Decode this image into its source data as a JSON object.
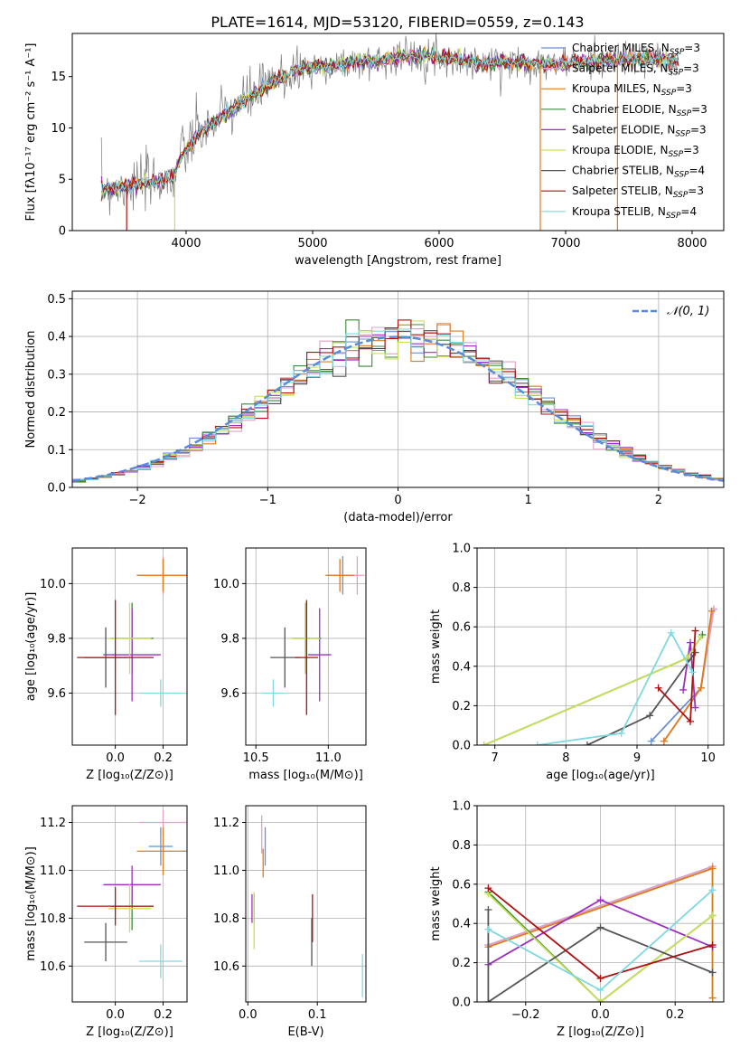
{
  "figure": {
    "title": "PLATE=1614, MJD=53120, FIBERID=0559, z=0.143"
  },
  "colors": {
    "Chabrier MILES": "#6b8fd4",
    "Salpeter MILES": "#e0a0c8",
    "Kroupa MILES": "#e07b1a",
    "Chabrier ELODIE": "#3a8a3a",
    "Salpeter ELODIE": "#9b30c0",
    "Kroupa ELODIE": "#c8e05a",
    "Chabrier STELIB": "#555555",
    "Salpeter STELIB": "#b01010",
    "Kroupa STELIB": "#80d8e0",
    "data": "#7a7a7a",
    "gaussian": "#5a8ad8"
  },
  "chart_data": [
    {
      "id": "spectrum",
      "type": "line",
      "xlabel": "wavelength [Angstrom, rest frame]",
      "ylabel": "Flux [fλ10⁻¹⁷ erg cm⁻² s⁻¹ A⁻¹]",
      "xlim": [
        3100,
        8250
      ],
      "ylim": [
        0,
        19.2
      ],
      "xticks": [
        4000,
        5000,
        6000,
        7000,
        8000
      ],
      "yticks": [
        0,
        5,
        10,
        15
      ],
      "grid": false,
      "legend_position": "top-right",
      "legend": [
        "Chabrier MILES, NSSP=3",
        "Salpeter MILES, NSSP=3",
        "Kroupa MILES, NSSP=3",
        "Chabrier ELODIE, NSSP=3",
        "Salpeter ELODIE, NSSP=3",
        "Kroupa ELODIE, NSSP=3",
        "Chabrier STELIB, NSSP=4",
        "Salpeter STELIB, NSSP=3",
        "Kroupa STELIB, NSSP=4"
      ],
      "continuum": {
        "x": [
          3330,
          3500,
          3700,
          3900,
          3950,
          4100,
          4300,
          4500,
          4700,
          4900,
          5100,
          5300,
          5500,
          5700,
          5900,
          6100,
          6300,
          6500,
          6700,
          6900,
          7100,
          7300,
          7500,
          7700,
          7900
        ],
        "y": [
          4.0,
          4.3,
          4.6,
          5.2,
          7.0,
          9.5,
          11.2,
          13.0,
          14.5,
          15.8,
          16.0,
          16.3,
          16.5,
          17.0,
          17.0,
          16.8,
          16.3,
          16.5,
          16.3,
          16.2,
          16.4,
          16.6,
          16.7,
          16.7,
          16.5
        ]
      },
      "zero_drops": [
        3530,
        3910,
        6800,
        7410
      ]
    },
    {
      "id": "residuals",
      "type": "line",
      "xlabel": "(data-model)/error",
      "ylabel": "Normed distribution",
      "xlim": [
        -2.5,
        2.5
      ],
      "ylim": [
        0,
        0.52
      ],
      "xticks": [
        -2,
        -1,
        0,
        1,
        2
      ],
      "yticks": [
        0.0,
        0.1,
        0.2,
        0.3,
        0.4,
        0.5
      ],
      "grid": true,
      "legend_position": "top-right",
      "legend_label": "𝒩(0, 1)",
      "bin_width": 0.1
    },
    {
      "id": "age-vs-Z",
      "type": "scatter",
      "xlabel": "Z [log₁₀(Z/Z⊙)]",
      "ylabel": "age  [log₁₀(age/yr)]",
      "xlim": [
        -0.18,
        0.3
      ],
      "ylim": [
        9.41,
        10.13
      ],
      "xticks": [
        0.0,
        0.2
      ],
      "yticks": [
        9.6,
        9.8,
        10.0
      ],
      "grid": true,
      "points": [
        {
          "model": "Chabrier MILES",
          "x": 0.2,
          "xerr": 0.11,
          "y": 10.03,
          "yerr": 0.06
        },
        {
          "model": "Salpeter MILES",
          "x": 0.2,
          "xerr": 0.1,
          "y": 10.03,
          "yerr": 0.07
        },
        {
          "model": "Kroupa MILES",
          "x": 0.2,
          "xerr": 0.11,
          "y": 10.03,
          "yerr": 0.06
        },
        {
          "model": "Chabrier ELODIE",
          "x": 0.07,
          "xerr": 0.09,
          "y": 9.8,
          "yerr": 0.13
        },
        {
          "model": "Salpeter ELODIE",
          "x": 0.07,
          "xerr": 0.12,
          "y": 9.74,
          "yerr": 0.17
        },
        {
          "model": "Kroupa ELODIE",
          "x": 0.06,
          "xerr": 0.09,
          "y": 9.8,
          "yerr": 0.13
        },
        {
          "model": "Chabrier STELIB",
          "x": -0.04,
          "xerr": 0.09,
          "y": 9.73,
          "yerr": 0.11
        },
        {
          "model": "Salpeter STELIB",
          "x": 0.0,
          "xerr": 0.16,
          "y": 9.73,
          "yerr": 0.21
        },
        {
          "model": "Kroupa STELIB",
          "x": 0.19,
          "xerr": 0.09,
          "y": 9.6,
          "yerr": 0.05
        }
      ]
    },
    {
      "id": "age-vs-mass",
      "type": "scatter",
      "xlabel": "mass [log₁₀(M/M⊙)]",
      "ylabel": "",
      "xlim": [
        10.43,
        11.26
      ],
      "ylim": [
        9.41,
        10.13
      ],
      "xticks": [
        10.5,
        11.0
      ],
      "yticks": [
        9.6,
        9.8,
        10.0
      ],
      "grid": true,
      "points": [
        {
          "model": "Chabrier MILES",
          "x": 11.1,
          "xerr": 0.1,
          "y": 10.03,
          "yerr": 0.07
        },
        {
          "model": "Salpeter MILES",
          "x": 11.2,
          "xerr": 0.05,
          "y": 10.03,
          "yerr": 0.07
        },
        {
          "model": "Kroupa MILES",
          "x": 11.08,
          "xerr": 0.1,
          "y": 10.03,
          "yerr": 0.06
        },
        {
          "model": "Chabrier ELODIE",
          "x": 10.85,
          "xerr": 0.1,
          "y": 9.8,
          "yerr": 0.13
        },
        {
          "model": "Salpeter ELODIE",
          "x": 10.94,
          "xerr": 0.08,
          "y": 9.74,
          "yerr": 0.17
        },
        {
          "model": "Kroupa ELODIE",
          "x": 10.84,
          "xerr": 0.1,
          "y": 9.8,
          "yerr": 0.13
        },
        {
          "model": "Chabrier STELIB",
          "x": 10.7,
          "xerr": 0.1,
          "y": 9.73,
          "yerr": 0.11
        },
        {
          "model": "Salpeter STELIB",
          "x": 10.85,
          "xerr": 0.08,
          "y": 9.73,
          "yerr": 0.21
        },
        {
          "model": "Kroupa STELIB",
          "x": 10.62,
          "xerr": 0.07,
          "y": 9.6,
          "yerr": 0.05
        }
      ]
    },
    {
      "id": "massweight-vs-age",
      "type": "line",
      "xlabel": "age  [log₁₀(age/yr)]",
      "ylabel": "mass weight",
      "xlim": [
        6.75,
        10.22
      ],
      "ylim": [
        0.0,
        1.0
      ],
      "xticks": [
        7,
        8,
        9,
        10
      ],
      "yticks": [
        0.0,
        0.2,
        0.4,
        0.6,
        0.8,
        1.0
      ],
      "grid": true,
      "series": [
        {
          "model": "Chabrier MILES",
          "x": [
            9.2,
            9.9,
            10.08
          ],
          "y": [
            0.02,
            0.29,
            0.69
          ]
        },
        {
          "model": "Salpeter MILES",
          "x": [
            9.38,
            9.9,
            10.08
          ],
          "y": [
            0.02,
            0.29,
            0.69
          ]
        },
        {
          "model": "Kroupa MILES",
          "x": [
            9.38,
            9.9,
            10.05
          ],
          "y": [
            0.02,
            0.29,
            0.68
          ]
        },
        {
          "model": "Chabrier ELODIE",
          "x": [
            6.85,
            9.7,
            9.92
          ],
          "y": [
            0.0,
            0.44,
            0.56
          ]
        },
        {
          "model": "Salpeter ELODIE",
          "x": [
            9.65,
            9.75,
            9.82
          ],
          "y": [
            0.28,
            0.52,
            0.19
          ]
        },
        {
          "model": "Kroupa ELODIE",
          "x": [
            6.85,
            9.7,
            9.9
          ],
          "y": [
            0.0,
            0.44,
            0.55
          ]
        },
        {
          "model": "Chabrier STELIB",
          "x": [
            8.3,
            9.18,
            9.82
          ],
          "y": [
            0.0,
            0.15,
            0.47
          ]
        },
        {
          "model": "Salpeter STELIB",
          "x": [
            9.3,
            9.75,
            9.82
          ],
          "y": [
            0.29,
            0.12,
            0.58
          ]
        },
        {
          "model": "Kroupa STELIB",
          "x": [
            7.6,
            8.78,
            9.48,
            9.78
          ],
          "y": [
            0.0,
            0.06,
            0.57,
            0.37
          ]
        }
      ]
    },
    {
      "id": "mass-vs-Z",
      "type": "scatter",
      "xlabel": "Z [log₁₀(Z/Z⊙)]",
      "ylabel": "mass [log₁₀(M/M⊙)]",
      "xlim": [
        -0.18,
        0.3
      ],
      "ylim": [
        10.45,
        11.27
      ],
      "xticks": [
        0.0,
        0.2
      ],
      "yticks": [
        10.6,
        10.8,
        11.0,
        11.2
      ],
      "grid": true,
      "points": [
        {
          "model": "Chabrier MILES",
          "x": 0.19,
          "xerr": 0.05,
          "y": 11.1,
          "yerr": 0.08
        },
        {
          "model": "Salpeter MILES",
          "x": 0.2,
          "xerr": 0.1,
          "y": 11.2,
          "yerr": 0.05
        },
        {
          "model": "Kroupa MILES",
          "x": 0.2,
          "xerr": 0.11,
          "y": 11.08,
          "yerr": 0.1
        },
        {
          "model": "Chabrier ELODIE",
          "x": 0.07,
          "xerr": 0.09,
          "y": 10.85,
          "yerr": 0.1
        },
        {
          "model": "Salpeter ELODIE",
          "x": 0.07,
          "xerr": 0.12,
          "y": 10.94,
          "yerr": 0.08
        },
        {
          "model": "Kroupa ELODIE",
          "x": 0.06,
          "xerr": 0.09,
          "y": 10.84,
          "yerr": 0.1
        },
        {
          "model": "Chabrier STELIB",
          "x": -0.04,
          "xerr": 0.09,
          "y": 10.7,
          "yerr": 0.08
        },
        {
          "model": "Salpeter STELIB",
          "x": 0.0,
          "xerr": 0.16,
          "y": 10.85,
          "yerr": 0.08
        },
        {
          "model": "Kroupa STELIB",
          "x": 0.19,
          "xerr": 0.09,
          "y": 10.62,
          "yerr": 0.07
        }
      ]
    },
    {
      "id": "mass-vs-EBV",
      "type": "scatter",
      "xlabel": "E(B-V)",
      "ylabel": "",
      "xlim": [
        -0.003,
        0.17
      ],
      "ylim": [
        10.45,
        11.27
      ],
      "xticks": [
        0.0,
        0.1
      ],
      "yticks": [
        10.6,
        10.8,
        11.0,
        11.2
      ],
      "grid": true,
      "points": [
        {
          "model": "Chabrier MILES",
          "x": 0.025,
          "y": 11.1,
          "yerr": 0.08
        },
        {
          "model": "Salpeter MILES",
          "x": 0.02,
          "y": 11.15,
          "yerr": 0.08
        },
        {
          "model": "Kroupa MILES",
          "x": 0.022,
          "y": 11.03,
          "yerr": 0.06
        },
        {
          "model": "Chabrier ELODIE",
          "x": 0.009,
          "y": 10.84,
          "yerr": 0.06
        },
        {
          "model": "Salpeter ELODIE",
          "x": 0.006,
          "y": 10.84,
          "yerr": 0.06
        },
        {
          "model": "Kroupa ELODIE",
          "x": 0.009,
          "y": 10.79,
          "yerr": 0.12
        },
        {
          "model": "Chabrier STELIB",
          "x": 0.092,
          "y": 10.7,
          "yerr": 0.1
        },
        {
          "model": "Salpeter STELIB",
          "x": 0.093,
          "y": 10.8,
          "yerr": 0.1
        },
        {
          "model": "Kroupa STELIB",
          "x": 0.165,
          "y": 10.56,
          "yerr": 0.09
        }
      ]
    },
    {
      "id": "massweight-vs-Z",
      "type": "line",
      "xlabel": "Z [log₁₀(Z/Z⊙)]",
      "ylabel": "mass weight",
      "xlim": [
        -0.33,
        0.33
      ],
      "ylim": [
        0.0,
        1.0
      ],
      "xticks": [
        -0.2,
        0.0,
        0.2
      ],
      "yticks": [
        0.0,
        0.2,
        0.4,
        0.6,
        0.8,
        1.0
      ],
      "grid": true,
      "series": [
        {
          "model": "Chabrier MILES",
          "x": [
            -0.3,
            0.3,
            0.3
          ],
          "y": [
            0.29,
            0.69,
            0.02
          ]
        },
        {
          "model": "Salpeter MILES",
          "x": [
            -0.3,
            0.3
          ],
          "y": [
            0.29,
            0.69
          ]
        },
        {
          "model": "Kroupa MILES",
          "x": [
            -0.3,
            0.3,
            0.3
          ],
          "y": [
            0.28,
            0.68,
            0.02
          ]
        },
        {
          "model": "Chabrier ELODIE",
          "x": [
            -0.3,
            0.0,
            0.3
          ],
          "y": [
            0.56,
            0.0,
            0.44
          ]
        },
        {
          "model": "Salpeter ELODIE",
          "x": [
            -0.3,
            0.0,
            0.3
          ],
          "y": [
            0.19,
            0.52,
            0.28
          ]
        },
        {
          "model": "Kroupa ELODIE",
          "x": [
            -0.3,
            0.0,
            0.3
          ],
          "y": [
            0.55,
            0.0,
            0.44
          ]
        },
        {
          "model": "Chabrier STELIB",
          "x": [
            -0.3,
            -0.3,
            0.0,
            0.3
          ],
          "y": [
            0.47,
            0.0,
            0.38,
            0.15
          ]
        },
        {
          "model": "Salpeter STELIB",
          "x": [
            -0.3,
            0.0,
            0.3
          ],
          "y": [
            0.58,
            0.12,
            0.29
          ]
        },
        {
          "model": "Kroupa STELIB",
          "x": [
            -0.3,
            0.0,
            0.3
          ],
          "y": [
            0.37,
            0.06,
            0.57
          ]
        }
      ]
    }
  ]
}
